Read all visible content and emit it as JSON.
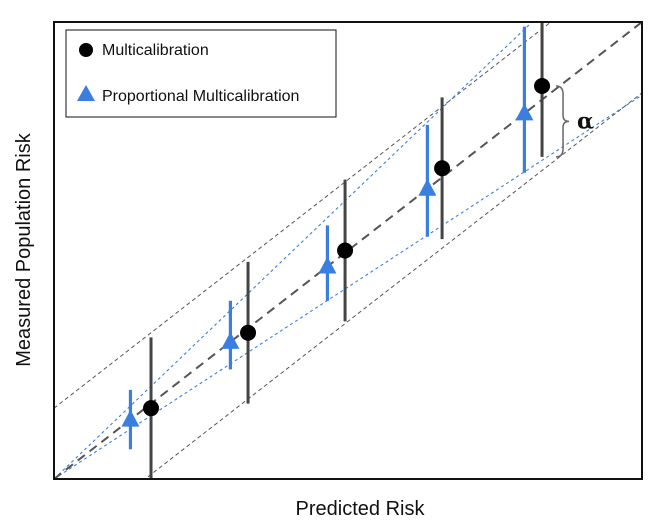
{
  "chart_data": {
    "type": "scatter",
    "title": "",
    "xlabel": "Predicted Risk",
    "ylabel": "Measured Population Risk",
    "xlim": [
      0,
      10
    ],
    "ylim": [
      0,
      10
    ],
    "grid": false,
    "legend_position": "top-left",
    "series": [
      {
        "name": "Multicalibration",
        "marker": "circle",
        "color": "#000000",
        "bar_color": "#444444",
        "x": [
          1.65,
          3.3,
          4.95,
          6.6,
          8.3
        ],
        "y": [
          1.55,
          3.2,
          5.0,
          6.8,
          8.6
        ],
        "lower": [
          0.0,
          1.65,
          3.45,
          5.25,
          7.05
        ],
        "upper": [
          3.1,
          4.75,
          6.55,
          8.35,
          10.15
        ]
      },
      {
        "name": "Proportional Multicalibration",
        "marker": "triangle",
        "color": "#3a7fe0",
        "bar_color": "#3a7fe0",
        "x": [
          1.3,
          3.0,
          4.65,
          6.35,
          8.0
        ],
        "y": [
          1.3,
          3.0,
          4.65,
          6.35,
          8.0
        ],
        "lower": [
          0.65,
          2.4,
          3.9,
          5.3,
          6.7
        ],
        "upper": [
          1.95,
          3.9,
          5.55,
          7.75,
          9.9
        ]
      }
    ],
    "bands": [
      {
        "name": "Multicalibration",
        "color": "#555555",
        "x": [
          0,
          10
        ],
        "lower": [
          -1.55,
          8.45
        ],
        "upper": [
          1.55,
          11.55
        ]
      },
      {
        "name": "Proportional Multicalibration",
        "color": "#3a7fe0",
        "x": [
          0,
          10
        ],
        "lower": [
          0,
          8.4
        ],
        "upper": [
          0,
          12.3
        ]
      }
    ],
    "identity_line": {
      "x": [
        0,
        10
      ],
      "y": [
        0,
        10
      ]
    },
    "annotations": [
      {
        "text": "α",
        "at_x": 8.3,
        "from_y": 8.6,
        "to_y": 7.05
      }
    ]
  }
}
